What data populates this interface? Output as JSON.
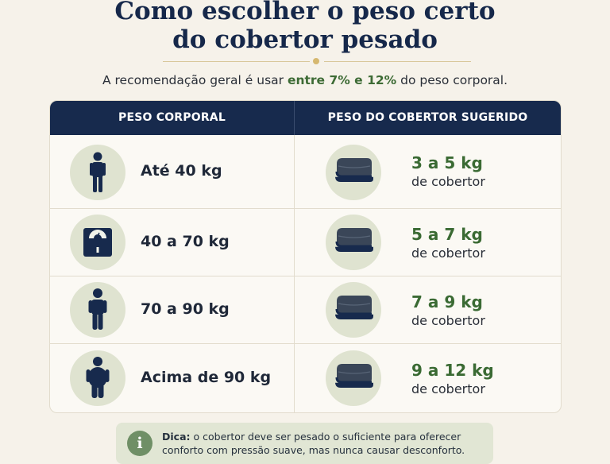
{
  "title": {
    "line1": "Como escolher o peso certo",
    "line2": "do cobertor pesado"
  },
  "subtitle": {
    "before": "A recomendação geral é usar ",
    "highlight": "entre 7% e 12%",
    "after": " do peso corporal."
  },
  "table": {
    "headers": {
      "body_weight": "PESO CORPORAL",
      "blanket_weight": "PESO DO COBERTOR SUGERIDO"
    },
    "rows": [
      {
        "body_icon": "person-slim-icon",
        "body_weight": "Até 40 kg",
        "blanket_icon": "folded-blanket-icon",
        "suggested": "3 a 5 kg",
        "suffix": "de cobertor"
      },
      {
        "body_icon": "bathroom-scale-icon",
        "body_weight": "40 a 70 kg",
        "blanket_icon": "folded-blanket-icon",
        "suggested": "5 a 7 kg",
        "suffix": "de cobertor"
      },
      {
        "body_icon": "person-medium-icon",
        "body_weight": "70 a 90 kg",
        "blanket_icon": "folded-blanket-icon",
        "suggested": "7 a 9 kg",
        "suffix": "de cobertor"
      },
      {
        "body_icon": "person-large-icon",
        "body_weight": "Acima de 90 kg",
        "blanket_icon": "folded-blanket-icon",
        "suggested": "9 a 12 kg",
        "suffix": "de cobertor"
      }
    ]
  },
  "tip": {
    "icon": "info-icon",
    "icon_glyph": "i",
    "label": "Dica:",
    "text_line1": " o cobertor deve ser pesado o suficiente para oferecer",
    "text_line2": "conforto com pressão suave, mas nunca causar desconforto."
  },
  "colors": {
    "navy": "#172a4d",
    "green": "#3a6a33",
    "circle": "#dfe3d0",
    "background": "#f6f2ea"
  }
}
